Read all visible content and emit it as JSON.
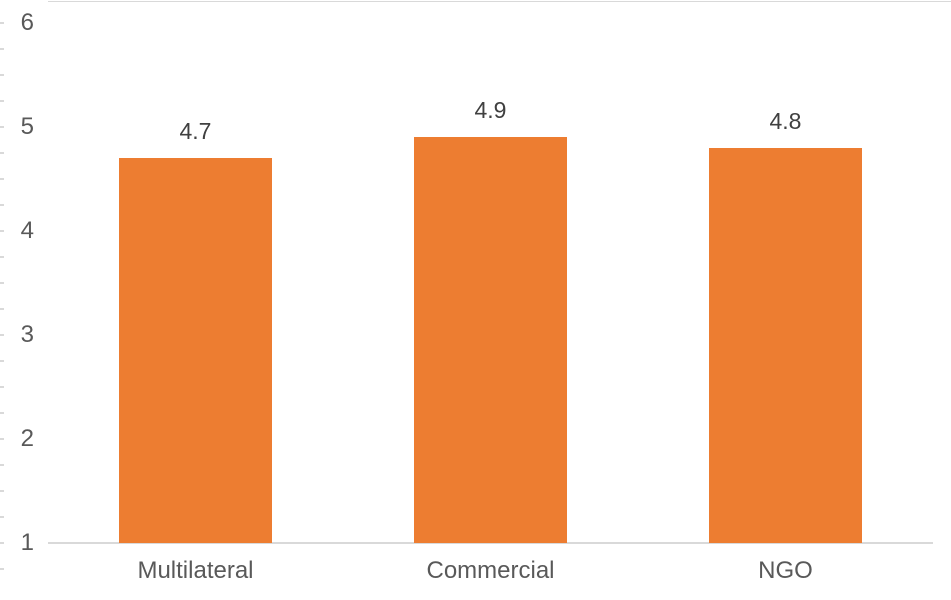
{
  "chart_data": {
    "type": "bar",
    "categories": [
      "Multilateral",
      "Commercial",
      "NGO"
    ],
    "values": [
      4.7,
      4.9,
      4.8
    ],
    "data_labels": [
      "4.7",
      "4.9",
      "4.8"
    ],
    "title": "",
    "xlabel": "",
    "ylabel": "",
    "ylim": [
      1,
      6
    ],
    "y_tick_labels": [
      "1",
      "2",
      "3",
      "4",
      "5",
      "6"
    ],
    "y_tick_values": [
      1,
      2,
      3,
      4,
      5,
      6
    ],
    "minor_tick_step": 0.25,
    "grid": false,
    "legend": "none",
    "colors": {
      "bar": "#ED7D31",
      "axis_line": "#D9D9D9",
      "minor_tick": "#D9D9D9",
      "chart_border": "#D9D9D9",
      "axis_label": "#595959",
      "data_label": "#404040"
    }
  }
}
